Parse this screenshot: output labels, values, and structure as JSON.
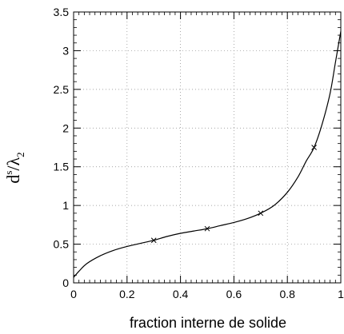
{
  "chart_data": {
    "type": "line",
    "title": "",
    "xlabel": "fraction interne de solide",
    "ylabel": {
      "base": "d",
      "sup": "s",
      "sep": "/",
      "lambda": "λ",
      "sub": "2"
    },
    "xlim": [
      0,
      1
    ],
    "ylim": [
      0,
      3.5
    ],
    "xticks": [
      0,
      0.2,
      0.4,
      0.6,
      0.8,
      1
    ],
    "xtick_labels": [
      "0",
      "0.2",
      "0.4",
      "0.6",
      "0.8",
      "1"
    ],
    "yticks": [
      0,
      0.5,
      1,
      1.5,
      2,
      2.5,
      3,
      3.5
    ],
    "ytick_labels": [
      "0",
      "0.5",
      "1",
      "1.5",
      "2",
      "2.5",
      "3",
      "3.5"
    ],
    "grid": true,
    "series": [
      {
        "curve_x": [
          0.0,
          0.02,
          0.05,
          0.1,
          0.15,
          0.2,
          0.25,
          0.3,
          0.35,
          0.4,
          0.45,
          0.5,
          0.55,
          0.6,
          0.65,
          0.7,
          0.75,
          0.8,
          0.84,
          0.87,
          0.9,
          0.93,
          0.96,
          0.98,
          1.0
        ],
        "curve_y": [
          0.07,
          0.15,
          0.25,
          0.35,
          0.42,
          0.47,
          0.51,
          0.55,
          0.6,
          0.64,
          0.67,
          0.7,
          0.74,
          0.78,
          0.83,
          0.9,
          1.0,
          1.17,
          1.37,
          1.57,
          1.75,
          2.05,
          2.45,
          2.85,
          3.25
        ],
        "marker_x": [
          0.3,
          0.5,
          0.7,
          0.9
        ],
        "marker_y": [
          0.55,
          0.7,
          0.9,
          1.75
        ]
      }
    ]
  }
}
